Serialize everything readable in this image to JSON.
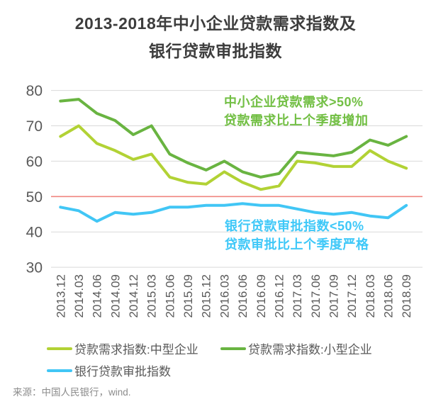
{
  "title": {
    "line1": "2013-2018年中小企业贷款需求指数及",
    "line2": "银行贷款审批指数"
  },
  "chart_data": {
    "type": "line",
    "x": [
      "2013.12",
      "2014.03",
      "2014.06",
      "2014.09",
      "2014.12",
      "2015.03",
      "2015.06",
      "2015.09",
      "2015.12",
      "2016.03",
      "2016.06",
      "2016.09",
      "2016.12",
      "2017.03",
      "2017.06",
      "2017.09",
      "2017.12",
      "2018.03",
      "2018.06",
      "2018.09"
    ],
    "series": [
      {
        "id": "loan-demand-medium",
        "name": "贷款需求指数:中型企业",
        "color": "#b2d235",
        "values": [
          67,
          70,
          65,
          63,
          60.5,
          62,
          55.5,
          54,
          53.5,
          57,
          54,
          52,
          53,
          60,
          59.5,
          58.5,
          58.5,
          63,
          60,
          58
        ]
      },
      {
        "id": "loan-demand-small",
        "name": "贷款需求指数:小型企业",
        "color": "#69b441",
        "values": [
          77,
          77.5,
          73.5,
          71.5,
          67.5,
          70,
          62,
          59.5,
          57.5,
          60,
          57,
          55.5,
          56.5,
          62.5,
          62,
          61.5,
          62.5,
          66,
          64.5,
          67
        ]
      },
      {
        "id": "bank-approval",
        "name": "银行贷款审批指数",
        "color": "#41c6f5",
        "values": [
          47,
          46,
          43,
          45.5,
          45,
          45.5,
          47,
          47,
          47.5,
          47.5,
          48,
          47.5,
          47.5,
          46.5,
          45.5,
          45,
          45.5,
          44.5,
          44,
          47.5
        ]
      }
    ],
    "ylim": [
      30,
      80
    ],
    "yticks": [
      80,
      70,
      60,
      50,
      40,
      30
    ],
    "reference_line": {
      "value": 50,
      "color": "#f0847f"
    },
    "grid": true,
    "grid_color": "#d9d9d9",
    "axis_color": "#595959",
    "legend_position": "bottom",
    "annotations": [
      {
        "line1": "中小企业贷款需求>50%",
        "line2": "贷款需求比上个季度增加",
        "color": "#72bf44"
      },
      {
        "line1": "银行贷款审批指数<50%",
        "line2": "贷款审批比上个季度严格",
        "color": "#3fc8f8"
      }
    ]
  },
  "source": "来源：中国人民银行，wind."
}
